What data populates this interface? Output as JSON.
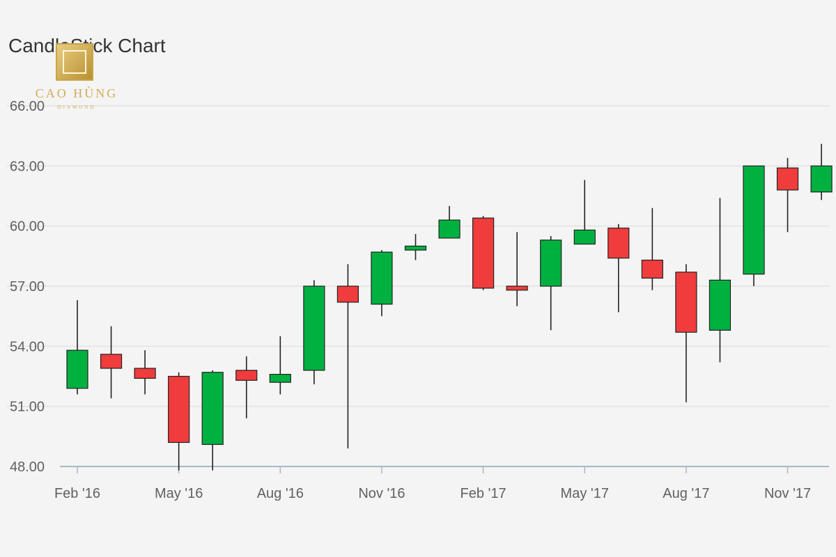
{
  "watermark": {
    "name": "CAO HÙNG",
    "sub": "DIAMOND"
  },
  "chart_data": {
    "type": "candlestick",
    "title": "CandleStick Chart",
    "xlabel": "",
    "ylabel": "",
    "ylim": [
      48,
      66
    ],
    "y_ticks": [
      "48.00",
      "51.00",
      "54.00",
      "57.00",
      "60.00",
      "63.00",
      "66.00"
    ],
    "x_ticks": [
      "Feb '16",
      "May '16",
      "Aug '16",
      "Nov '16",
      "Feb '17",
      "May '17",
      "Aug '17",
      "Nov '17"
    ],
    "grid": true,
    "colors": {
      "up": "#00b140",
      "down": "#f03c3c",
      "outline": "#222222",
      "grid": "#e2e2e2",
      "axis": "#a8b8c8"
    },
    "candles": [
      {
        "x": "Feb '16",
        "open": 51.9,
        "high": 56.3,
        "low": 51.6,
        "close": 53.8
      },
      {
        "x": "Mar '16",
        "open": 53.6,
        "high": 55.0,
        "low": 51.4,
        "close": 52.9
      },
      {
        "x": "Apr '16",
        "open": 52.9,
        "high": 53.8,
        "low": 51.6,
        "close": 52.4
      },
      {
        "x": "May '16",
        "open": 52.5,
        "high": 52.7,
        "low": 47.8,
        "close": 49.2
      },
      {
        "x": "Jun '16",
        "open": 49.1,
        "high": 52.8,
        "low": 47.8,
        "close": 52.7
      },
      {
        "x": "Jul '16",
        "open": 52.8,
        "high": 53.5,
        "low": 50.4,
        "close": 52.3
      },
      {
        "x": "Aug '16",
        "open": 52.2,
        "high": 54.5,
        "low": 51.6,
        "close": 52.6
      },
      {
        "x": "Sep '16",
        "open": 52.8,
        "high": 57.3,
        "low": 52.1,
        "close": 57.0
      },
      {
        "x": "Oct '16",
        "open": 57.0,
        "high": 58.1,
        "low": 48.9,
        "close": 56.2
      },
      {
        "x": "Nov '16",
        "open": 56.1,
        "high": 58.8,
        "low": 55.5,
        "close": 58.7
      },
      {
        "x": "Dec '16",
        "open": 58.8,
        "high": 59.6,
        "low": 58.3,
        "close": 59.0
      },
      {
        "x": "Jan '17",
        "open": 59.4,
        "high": 61.0,
        "low": 59.4,
        "close": 60.3
      },
      {
        "x": "Feb '17",
        "open": 60.4,
        "high": 60.5,
        "low": 56.8,
        "close": 56.9
      },
      {
        "x": "Mar '17",
        "open": 57.0,
        "high": 59.7,
        "low": 56.0,
        "close": 56.8
      },
      {
        "x": "Apr '17",
        "open": 57.0,
        "high": 59.5,
        "low": 54.8,
        "close": 59.3
      },
      {
        "x": "May '17",
        "open": 59.1,
        "high": 62.3,
        "low": 59.1,
        "close": 59.8
      },
      {
        "x": "Jun '17",
        "open": 59.9,
        "high": 60.1,
        "low": 55.7,
        "close": 58.4
      },
      {
        "x": "Jul '17",
        "open": 58.3,
        "high": 60.9,
        "low": 56.8,
        "close": 57.4
      },
      {
        "x": "Aug '17",
        "open": 57.7,
        "high": 58.1,
        "low": 51.2,
        "close": 54.7
      },
      {
        "x": "Sep '17",
        "open": 54.8,
        "high": 61.4,
        "low": 53.2,
        "close": 57.3
      },
      {
        "x": "Oct '17",
        "open": 57.6,
        "high": 63.0,
        "low": 57.0,
        "close": 63.0
      },
      {
        "x": "Nov '17",
        "open": 62.9,
        "high": 63.4,
        "low": 59.7,
        "close": 61.8
      },
      {
        "x": "Dec '17",
        "open": 61.7,
        "high": 64.1,
        "low": 61.3,
        "close": 63.0
      }
    ]
  }
}
